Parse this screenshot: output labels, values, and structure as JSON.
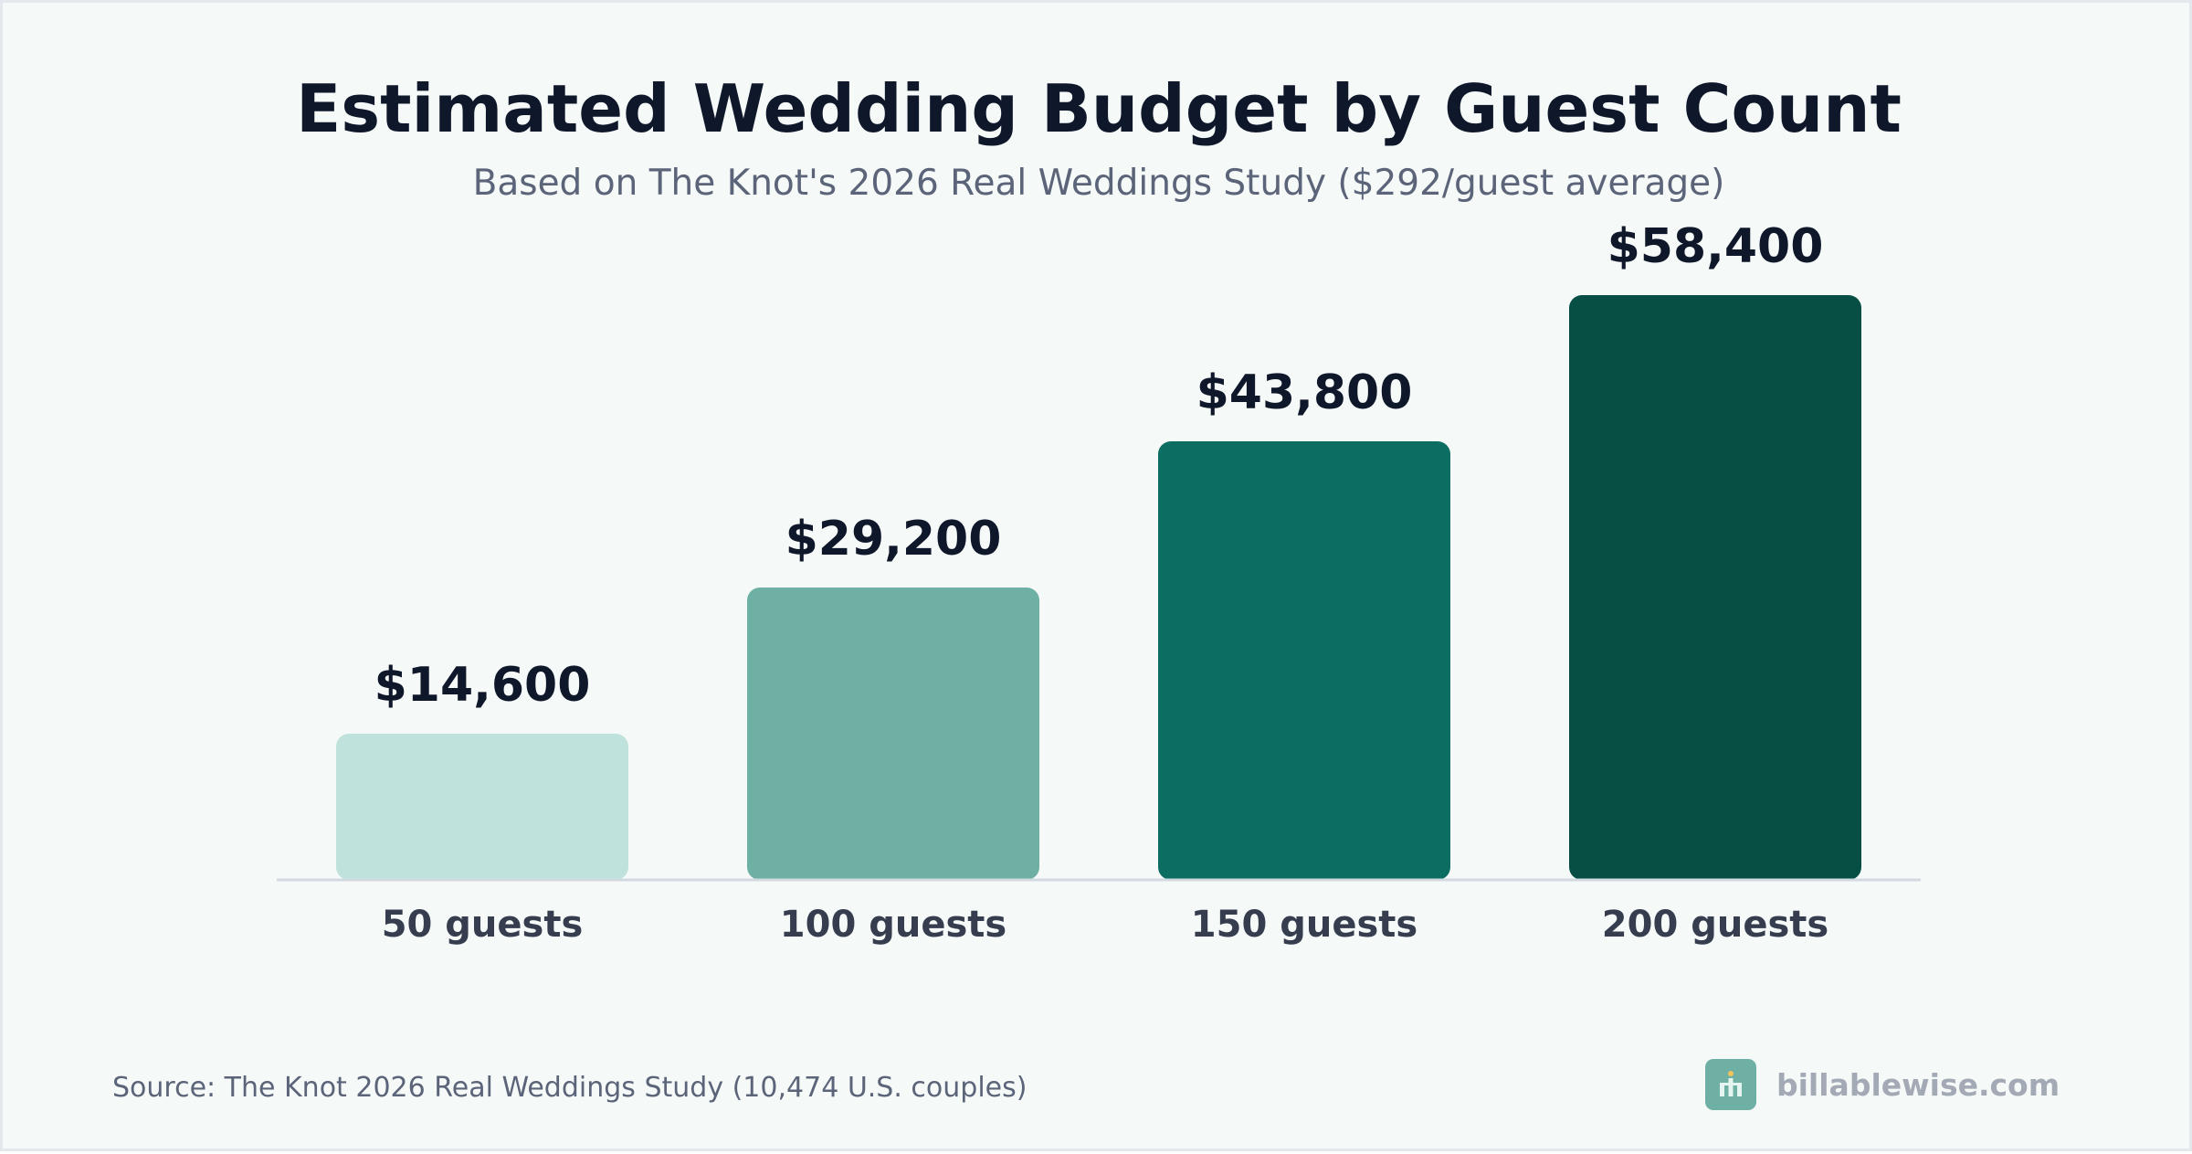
{
  "chart_data": {
    "type": "bar",
    "title": "Estimated Wedding Budget by Guest Count",
    "subtitle": "Based on The Knot's 2026 Real Weddings Study ($292/guest average)",
    "categories": [
      "50 guests",
      "100 guests",
      "150 guests",
      "200 guests"
    ],
    "values": [
      14600,
      29200,
      43800,
      58400
    ],
    "value_labels": [
      "$14,600",
      "$29,200",
      "$43,800",
      "$58,400"
    ],
    "colors": [
      "#bfe3dc",
      "#6fb0a5",
      "#0c6e62",
      "#074f45"
    ],
    "ylim": [
      0,
      58400
    ],
    "grid": false,
    "legend": "none",
    "xlabel": "",
    "ylabel": ""
  },
  "footer": {
    "source": "Source: The Knot 2026 Real Weddings Study (10,474 U.S. couples)",
    "brand": "billablewise.com",
    "brand_icon": "chart-building-icon",
    "brand_color": "#6fb0a5"
  }
}
